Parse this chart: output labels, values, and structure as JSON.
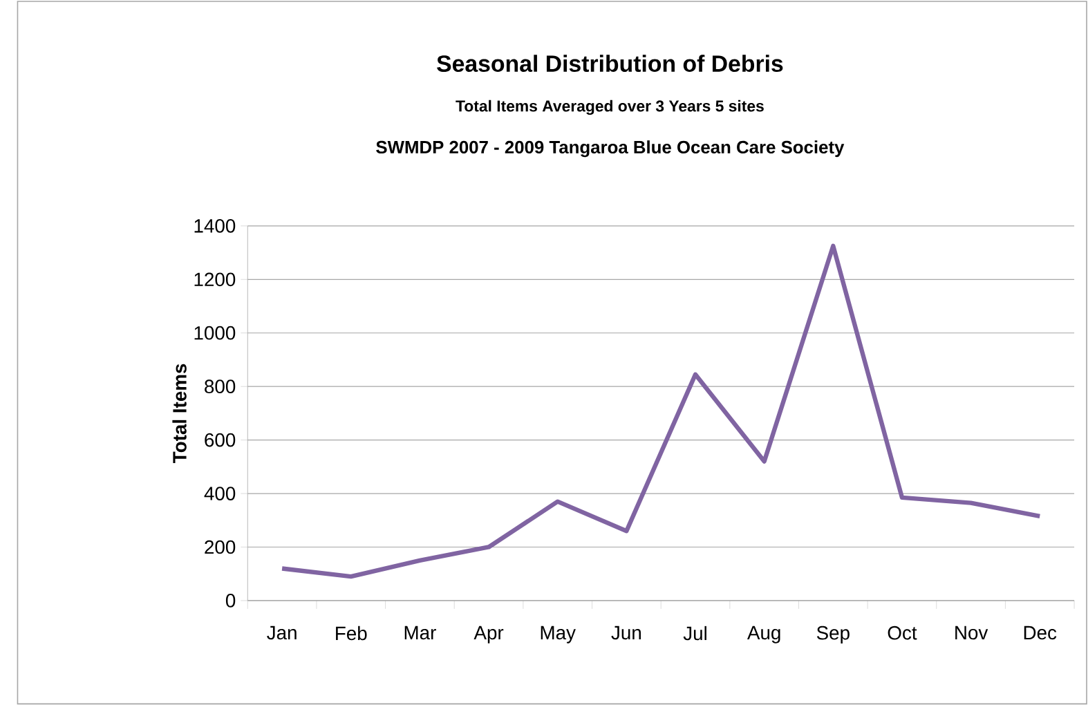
{
  "chart_data": {
    "type": "line",
    "title": "Seasonal Distribution of Debris",
    "subtitle": "Total Items Averaged over 3 Years 5 sites",
    "annotations": [
      "SWMDP 2007 - 2009 Tangaroa Blue Ocean Care Society"
    ],
    "ylabel": "Total Items",
    "categories": [
      "Jan",
      "Feb",
      "Mar",
      "Apr",
      "May",
      "Jun",
      "Jul",
      "Aug",
      "Sep",
      "Oct",
      "Nov",
      "Dec"
    ],
    "series": [
      {
        "color": "#8064a2",
        "values": [
          120,
          90,
          150,
          200,
          370,
          260,
          845,
          520,
          1325,
          385,
          365,
          315
        ]
      }
    ],
    "ylim": [
      0,
      1400
    ],
    "yticks": [
      0,
      200,
      400,
      600,
      800,
      1000,
      1200,
      1400
    ],
    "grid": "y",
    "marker": "none",
    "line_style": "solid"
  }
}
